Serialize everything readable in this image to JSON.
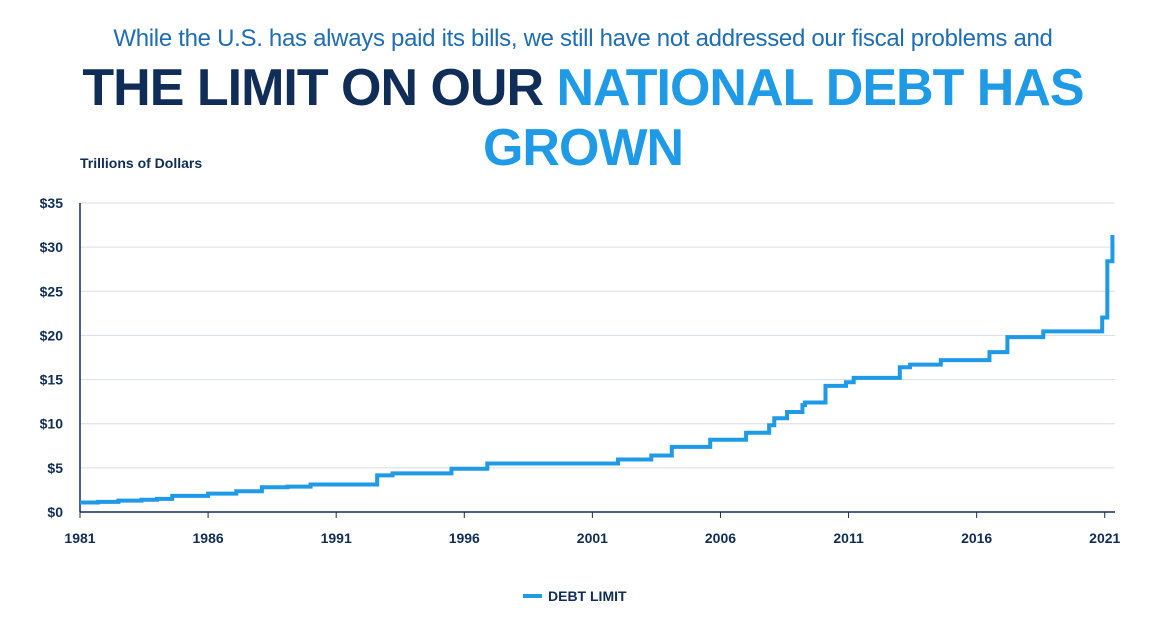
{
  "header": {
    "subtitle": "While the U.S. has always paid its bills, we still have not addressed our fiscal problems and",
    "title_part1": "THE LIMIT ON OUR ",
    "title_part2": "NATIONAL DEBT HAS GROWN"
  },
  "colors": {
    "title_dark": "#102d57",
    "title_accent": "#1f9ae6",
    "subtitle": "#1f6db3",
    "series": "#1f9ae6",
    "grid": "#d9dde3"
  },
  "chart_data": {
    "type": "line",
    "step": true,
    "ylabel": "Trillions of Dollars",
    "xlim": [
      1981,
      2021.4
    ],
    "ylim": [
      0,
      35
    ],
    "x_ticks": [
      1981,
      1986,
      1991,
      1996,
      2001,
      2006,
      2011,
      2016,
      2021
    ],
    "y_ticks": [
      0,
      5,
      10,
      15,
      20,
      25,
      30,
      35
    ],
    "y_tick_labels": [
      "$0",
      "$5",
      "$10",
      "$15",
      "$20",
      "$25",
      "$30",
      "$35"
    ],
    "grid": true,
    "legend": "bottom-center",
    "series": [
      {
        "name": "DEBT LIMIT",
        "color": "#1f9ae6",
        "x": [
          1981.0,
          1981.7,
          1982.5,
          1983.4,
          1984.0,
          1984.6,
          1986.0,
          1987.1,
          1988.1,
          1989.1,
          1990.0,
          1992.6,
          1993.2,
          1995.5,
          1996.9,
          2002.0,
          2003.3,
          2004.1,
          2005.6,
          2007.0,
          2007.9,
          2008.1,
          2008.6,
          2009.2,
          2009.3,
          2010.1,
          2010.9,
          2011.2,
          2013.0,
          2013.4,
          2014.6,
          2016.5,
          2017.2,
          2018.6,
          2020.9,
          2021.1,
          2021.3
        ],
        "values": [
          1.08,
          1.14,
          1.29,
          1.39,
          1.49,
          1.82,
          2.08,
          2.35,
          2.8,
          2.87,
          3.12,
          4.15,
          4.37,
          4.9,
          5.5,
          5.95,
          6.4,
          7.38,
          8.18,
          8.97,
          9.82,
          10.62,
          11.32,
          12.1,
          12.4,
          14.29,
          14.69,
          15.19,
          16.4,
          16.7,
          17.2,
          18.11,
          19.81,
          20.46,
          22.03,
          28.4,
          28.9
        ]
      }
    ],
    "final_value": 31.38
  }
}
